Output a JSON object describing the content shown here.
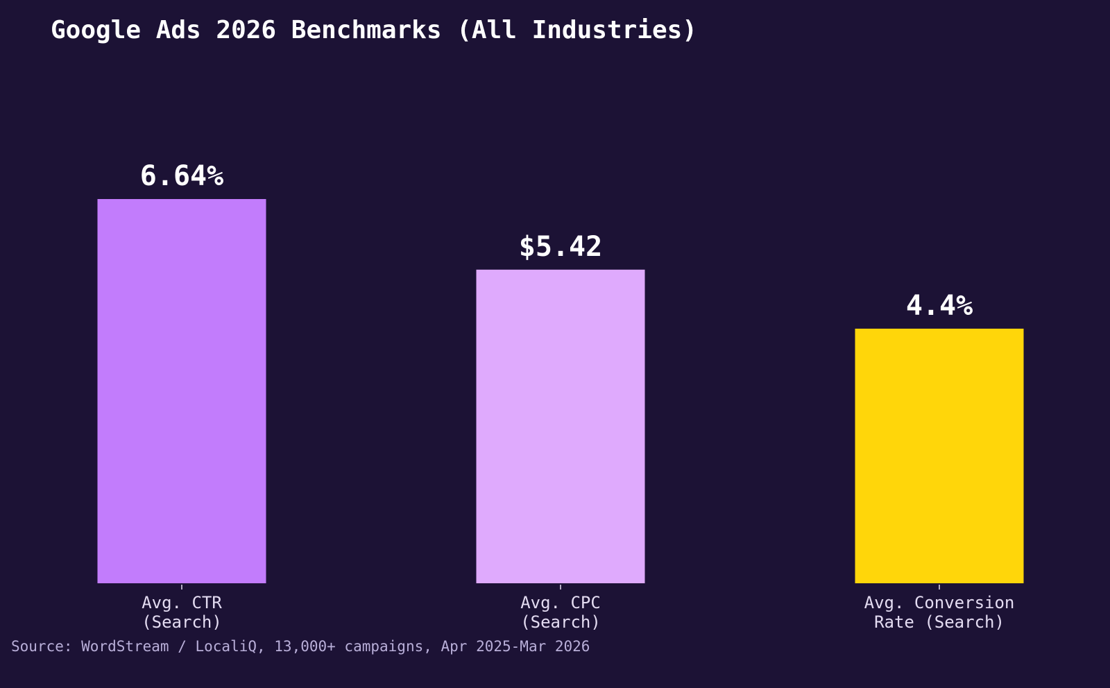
{
  "chart_data": {
    "type": "bar",
    "title": "Google Ads 2026 Benchmarks (All Industries)",
    "categories": [
      "Avg. CTR\n(Search)",
      "Avg. CPC\n(Search)",
      "Avg. Conversion\nRate (Search)"
    ],
    "values": [
      6.64,
      5.42,
      4.4
    ],
    "value_labels": [
      "6.64%",
      "$5.42",
      "4.4%"
    ],
    "colors": [
      "#c27cfc",
      "#dfaafd",
      "#ffd60a"
    ],
    "source": "Source: WordStream / LocaliQ, 13,000+ campaigns, Apr 2025-Mar 2026"
  }
}
